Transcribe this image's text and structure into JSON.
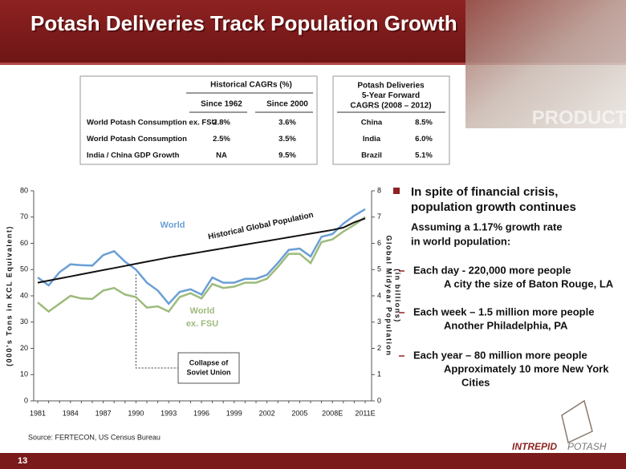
{
  "header": {
    "title": "Potash Deliveries Track Population Growth",
    "image_text": "PRODUCTS"
  },
  "cagr_table": {
    "title": "Historical CAGRs (%)",
    "columns": [
      "Since 1962",
      "Since 2000"
    ],
    "rows": [
      [
        "World Potash Consumption ex. FSU",
        "2.8%",
        "3.6%"
      ],
      [
        "World Potash Consumption",
        "2.5%",
        "3.5%"
      ],
      [
        "India / China GDP Growth",
        "NA",
        "9.5%"
      ]
    ]
  },
  "deliveries_table": {
    "title": [
      "Potash Deliveries",
      "5-Year Forward",
      "CAGRS (2008 – 2012)"
    ],
    "rows": [
      [
        "China",
        "8.5%"
      ],
      [
        "India",
        "6.0%"
      ],
      [
        "Brazil",
        "5.1%"
      ]
    ]
  },
  "chart_data": {
    "type": "line",
    "categories": [
      "1981",
      null,
      null,
      "1984",
      null,
      null,
      "1987",
      null,
      null,
      "1990",
      null,
      null,
      "1993",
      null,
      null,
      "1996",
      null,
      null,
      "1999",
      null,
      null,
      "2002",
      null,
      null,
      "2005",
      null,
      null,
      "2008E",
      null,
      null,
      "2011E"
    ],
    "series": [
      {
        "name": "World",
        "color": "#6a9fd4",
        "values": [
          47,
          44,
          49,
          52,
          51.7,
          51.5,
          55.5,
          57,
          53,
          50,
          45,
          42,
          37,
          41.5,
          42.5,
          40.5,
          47,
          45,
          45,
          46.5,
          46.5,
          48,
          52.5,
          57.5,
          58,
          55,
          62.5,
          63.5,
          67.5,
          70.5,
          73
        ]
      },
      {
        "name": "World ex. FSU",
        "color": "#9dbb7c",
        "values": [
          37.5,
          34,
          37,
          40,
          39,
          38.8,
          42,
          43,
          40.5,
          39.5,
          35.5,
          36,
          34,
          39.5,
          41,
          39,
          44.5,
          43,
          43.5,
          45,
          45,
          46.5,
          51,
          56,
          56,
          52.5,
          60.5,
          61.5,
          64.5,
          67,
          70
        ]
      },
      {
        "name": "Historical Global Population",
        "color": "#111111",
        "axis": "y2",
        "values": [
          4.5,
          4.58,
          4.66,
          4.74,
          4.82,
          4.9,
          4.98,
          5.06,
          5.14,
          5.22,
          5.3,
          5.38,
          5.46,
          5.53,
          5.6,
          5.67,
          5.74,
          5.81,
          5.88,
          5.95,
          6.02,
          6.09,
          6.16,
          6.23,
          6.3,
          6.37,
          6.44,
          6.51,
          6.6,
          6.8,
          6.95
        ]
      }
    ],
    "ylabel": "(000's Tons in KCL Equivalent)",
    "y2label": [
      "Global Midyear Population",
      "(in billions)"
    ],
    "ylim": [
      0,
      80
    ],
    "yticks": [
      0,
      10,
      20,
      30,
      40,
      50,
      60,
      70,
      80
    ],
    "y2lim": [
      0,
      8
    ],
    "y2ticks": [
      0,
      1,
      2,
      3,
      4,
      5,
      6,
      7,
      8
    ],
    "annotations": [
      {
        "text": [
          "Collapse of",
          "Soviet Union"
        ],
        "category": 9
      }
    ]
  },
  "source": "Source:  FERTECON, US Census Bureau",
  "bullets": {
    "heading": [
      "In spite of financial crisis,",
      "population growth continues"
    ],
    "intro": [
      "Assuming a 1.17% growth rate",
      "in world population:"
    ],
    "items": [
      {
        "main": "Each day - 220,000 more people",
        "sub": [
          "A city the size of Baton Rouge, LA"
        ]
      },
      {
        "main": "Each week – 1.5 million more people",
        "sub": [
          "Another Philadelphia, PA"
        ]
      },
      {
        "main": "Each year – 80 million more people",
        "sub": [
          "Approximately 10 more New York",
          "Cities"
        ]
      }
    ]
  },
  "footer": {
    "page": "13",
    "logo": [
      "INTREPID",
      "POTASH"
    ]
  }
}
